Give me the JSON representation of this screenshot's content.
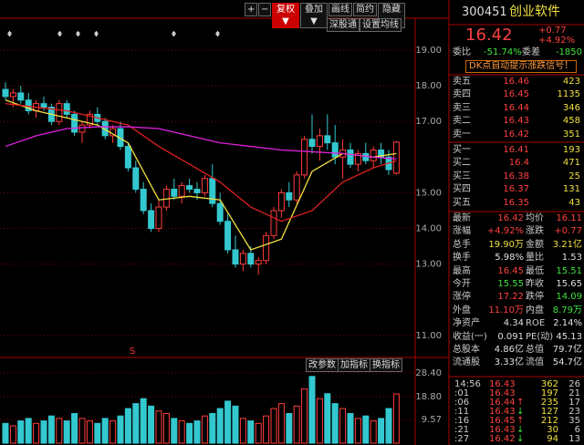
{
  "toolbar": [
    "+",
    "−",
    "复权▼",
    "叠加▼",
    "画线",
    "简约",
    "隐藏▶▶"
  ],
  "subbar": [
    "深股通",
    "设置均线"
  ],
  "kline": {
    "type": "candlestick",
    "ylim": [
      10.6,
      19.6
    ],
    "yticks": [
      {
        "value": 19,
        "label": "19.00"
      },
      {
        "value": 18,
        "label": "18.00"
      },
      {
        "value": 17,
        "label": "17.00"
      },
      {
        "value": 15,
        "label": "15.00"
      },
      {
        "value": 14,
        "label": "14.00"
      },
      {
        "value": 13,
        "label": "13.00"
      },
      {
        "value": 11,
        "label": "11.00"
      }
    ],
    "up_color": "#ff3c3c",
    "down_color": "#33c8d0",
    "grid": true,
    "signal": "S",
    "candles": [
      [
        17.9,
        18.1,
        17.6,
        17.7
      ],
      [
        17.7,
        17.9,
        17.4,
        17.8
      ],
      [
        17.8,
        18.0,
        17.5,
        17.6
      ],
      [
        17.6,
        17.8,
        17.2,
        17.3
      ],
      [
        17.3,
        17.6,
        17.1,
        17.5
      ],
      [
        17.5,
        17.7,
        17.3,
        17.4
      ],
      [
        17.4,
        17.5,
        16.9,
        17.0
      ],
      [
        17.0,
        17.6,
        16.9,
        17.5
      ],
      [
        17.5,
        17.6,
        17.1,
        17.2
      ],
      [
        17.2,
        17.3,
        16.6,
        16.7
      ],
      [
        16.7,
        17.0,
        16.4,
        16.9
      ],
      [
        16.9,
        17.3,
        16.8,
        17.2
      ],
      [
        17.2,
        17.4,
        16.9,
        17.0
      ],
      [
        17.0,
        17.1,
        16.5,
        16.6
      ],
      [
        16.6,
        16.9,
        16.4,
        16.8
      ],
      [
        16.8,
        17.0,
        16.2,
        16.3
      ],
      [
        16.3,
        16.4,
        15.6,
        15.7
      ],
      [
        15.7,
        15.9,
        15.0,
        15.1
      ],
      [
        15.1,
        15.3,
        14.4,
        14.5
      ],
      [
        14.5,
        14.7,
        13.9,
        14.0
      ],
      [
        14.0,
        14.8,
        13.9,
        14.6
      ],
      [
        14.6,
        15.2,
        14.5,
        15.1
      ],
      [
        15.1,
        15.4,
        14.8,
        14.9
      ],
      [
        14.9,
        15.3,
        14.7,
        15.2
      ],
      [
        15.2,
        15.4,
        15.0,
        15.1
      ],
      [
        15.1,
        15.3,
        14.8,
        15.0
      ],
      [
        15.0,
        15.5,
        14.9,
        15.4
      ],
      [
        15.4,
        15.8,
        14.6,
        14.7
      ],
      [
        14.7,
        15.0,
        14.1,
        14.2
      ],
      [
        14.2,
        14.4,
        13.3,
        13.4
      ],
      [
        13.4,
        13.8,
        12.9,
        13.0
      ],
      [
        13.0,
        13.4,
        12.8,
        13.3
      ],
      [
        13.3,
        13.5,
        12.9,
        13.0
      ],
      [
        13.0,
        13.2,
        12.7,
        13.1
      ],
      [
        13.1,
        13.9,
        13.0,
        13.8
      ],
      [
        13.8,
        14.6,
        13.7,
        14.5
      ],
      [
        14.5,
        15.1,
        14.3,
        15.0
      ],
      [
        15.0,
        15.3,
        14.6,
        14.8
      ],
      [
        14.8,
        15.6,
        14.7,
        15.5
      ],
      [
        15.5,
        16.6,
        15.4,
        16.5
      ],
      [
        16.5,
        17.2,
        16.1,
        16.3
      ],
      [
        16.3,
        16.8,
        15.9,
        16.6
      ],
      [
        16.6,
        17.2,
        16.2,
        16.4
      ],
      [
        16.4,
        16.9,
        15.8,
        16.0
      ],
      [
        16.0,
        16.5,
        15.4,
        16.2
      ],
      [
        16.2,
        16.4,
        15.7,
        15.8
      ],
      [
        15.8,
        16.2,
        15.6,
        16.1
      ],
      [
        16.1,
        16.4,
        15.8,
        15.9
      ],
      [
        15.9,
        16.3,
        15.7,
        16.2
      ],
      [
        16.2,
        16.4,
        15.8,
        16.0
      ],
      [
        16.0,
        16.2,
        15.5,
        15.65
      ],
      [
        15.55,
        16.45,
        15.51,
        16.42
      ]
    ],
    "ma": [
      {
        "color": "#f0e040",
        "x": [
          0,
          4,
          8,
          12,
          16,
          20,
          24,
          28,
          32,
          36,
          40,
          44,
          48,
          51
        ],
        "values": [
          17.6,
          17.3,
          17.1,
          16.9,
          16.4,
          14.8,
          14.9,
          14.8,
          13.4,
          13.7,
          15.6,
          16.1,
          16.0,
          16.1
        ]
      },
      {
        "color": "#e02020",
        "x": [
          0,
          4,
          8,
          12,
          16,
          20,
          24,
          28,
          32,
          36,
          40,
          44,
          48,
          51
        ],
        "values": [
          17.5,
          17.4,
          17.3,
          17.1,
          16.9,
          16.3,
          15.8,
          15.3,
          14.6,
          14.2,
          14.5,
          15.3,
          15.7,
          15.9
        ]
      },
      {
        "color": "#e020e0",
        "x": [
          0,
          4,
          8,
          12,
          16,
          20,
          24,
          28,
          32,
          36,
          40,
          44,
          48,
          51
        ],
        "values": [
          16.3,
          16.6,
          16.8,
          16.85,
          16.85,
          16.8,
          16.6,
          16.4,
          16.3,
          16.2,
          16.15,
          16.1,
          16.0,
          15.95
        ]
      }
    ]
  },
  "volume": {
    "type": "bar",
    "buttons": [
      "改参数",
      "加指标",
      "换指标"
    ],
    "ylim": [
      0,
      28.4
    ],
    "yticks": [
      {
        "value": 28.4,
        "label": "28.40"
      },
      {
        "value": 18.8,
        "label": "18.80"
      },
      9.57
    ],
    "values": [
      8,
      7,
      9,
      10,
      8,
      9,
      11,
      10,
      9,
      12,
      10,
      9,
      8,
      10,
      9,
      11,
      14,
      16,
      18,
      15,
      13,
      12,
      10,
      9,
      8,
      9,
      11,
      12,
      14,
      17,
      15,
      10,
      9,
      8,
      11,
      14,
      16,
      12,
      15,
      22,
      27,
      18,
      20,
      16,
      14,
      12,
      10,
      11,
      9,
      10,
      14,
      19.9
    ]
  },
  "quote": {
    "code": "300451",
    "name": "创业软件",
    "price": 16.42,
    "change": "+0.77",
    "change_pct": "+4.92%",
    "weibi_label": "委比",
    "weibi": "-51.74%",
    "weicha_label": "委差",
    "weicha": -1850,
    "dk_link": "DK点自动提示涨跌信号！",
    "sells": [
      {
        "label": "卖五",
        "price": 16.46,
        "vol": 423
      },
      {
        "label": "卖四",
        "price": 16.45,
        "vol": 1135
      },
      {
        "label": "卖三",
        "price": 16.44,
        "vol": 346
      },
      {
        "label": "卖二",
        "price": 16.43,
        "vol": 458
      },
      {
        "label": "卖一",
        "price": 16.42,
        "vol": 351
      }
    ],
    "buys": [
      {
        "label": "买一",
        "price": 16.41,
        "vol": 193
      },
      {
        "label": "买二",
        "price": 16.4,
        "vol": 471
      },
      {
        "label": "买三",
        "price": 16.38,
        "vol": 25
      },
      {
        "label": "买四",
        "price": 16.37,
        "vol": 131
      },
      {
        "label": "买五",
        "price": 16.35,
        "vol": 43
      }
    ],
    "stats": [
      {
        "k1": "最新",
        "v1": 16.42,
        "c1": "#ff4040",
        "k2": "均价",
        "v2": 16.11,
        "c2": "#ff4040"
      },
      {
        "k1": "涨幅",
        "v1": "+4.92%",
        "c1": "#ff4040",
        "k2": "涨跌",
        "v2": "+0.77",
        "c2": "#ff4040"
      },
      {
        "k1": "总手",
        "v1": "19.90万",
        "c1": "#f0e040",
        "k2": "金额",
        "v2": "3.21亿",
        "c2": "#f0e040"
      },
      {
        "k1": "换手",
        "v1": "5.98%",
        "c1": "#e0e0e0",
        "k2": "量比",
        "v2": 1.53,
        "c2": "#e0e0e0"
      },
      {
        "k1": "最高",
        "v1": 16.45,
        "c1": "#ff4040",
        "k2": "最低",
        "v2": 15.51,
        "c2": "#40e040"
      },
      {
        "k1": "今开",
        "v1": 15.55,
        "c1": "#40e040",
        "k2": "昨收",
        "v2": 15.65,
        "c2": "#e0e0e0"
      },
      {
        "k1": "涨停",
        "v1": 17.22,
        "c1": "#ff4040",
        "k2": "跌停",
        "v2": 14.09,
        "c2": "#40e040"
      },
      {
        "k1": "外盘",
        "v1": "11.10万",
        "c1": "#ff4040",
        "k2": "内盘",
        "v2": "8.79万",
        "c2": "#40e040"
      },
      {
        "k1": "净资产",
        "v1": 4.34,
        "c1": "#e0e0e0",
        "k2": "ROE",
        "v2": "2.14%",
        "c2": "#e0e0e0"
      },
      {
        "k1": "收益(一)",
        "v1": 0.091,
        "c1": "#e0e0e0",
        "k2": "PE(动)",
        "v2": 45.13,
        "c2": "#e0e0e0"
      },
      {
        "k1": "总股本",
        "v1": "4.86亿",
        "c1": "#e0e0e0",
        "k2": "总值",
        "v2": "79.7亿",
        "c2": "#e0e0e0"
      },
      {
        "k1": "流通股",
        "v1": "3.33亿",
        "c1": "#e0e0e0",
        "k2": "流值",
        "v2": "54.7亿",
        "c2": "#e0e0e0"
      }
    ],
    "ticks": [
      {
        "time": "14:56",
        "price": 16.43,
        "dir": "",
        "vol": 362,
        "n": 26
      },
      {
        "time": ":01",
        "price": 16.43,
        "dir": "",
        "vol": 197,
        "n": 21
      },
      {
        "time": ":06",
        "price": 16.44,
        "dir": "↑",
        "vol": 235,
        "n": 17
      },
      {
        "time": ":11",
        "price": 16.43,
        "dir": "↓",
        "vol": 127,
        "n": 23
      },
      {
        "time": ":16",
        "price": 16.45,
        "dir": "↑",
        "vol": 212,
        "n": 35
      },
      {
        "time": ":21",
        "price": 16.43,
        "dir": "↓",
        "vol": 30,
        "n": 6
      },
      {
        "time": ":27",
        "price": 16.42,
        "dir": "↓",
        "vol": 94,
        "n": 13
      }
    ]
  }
}
